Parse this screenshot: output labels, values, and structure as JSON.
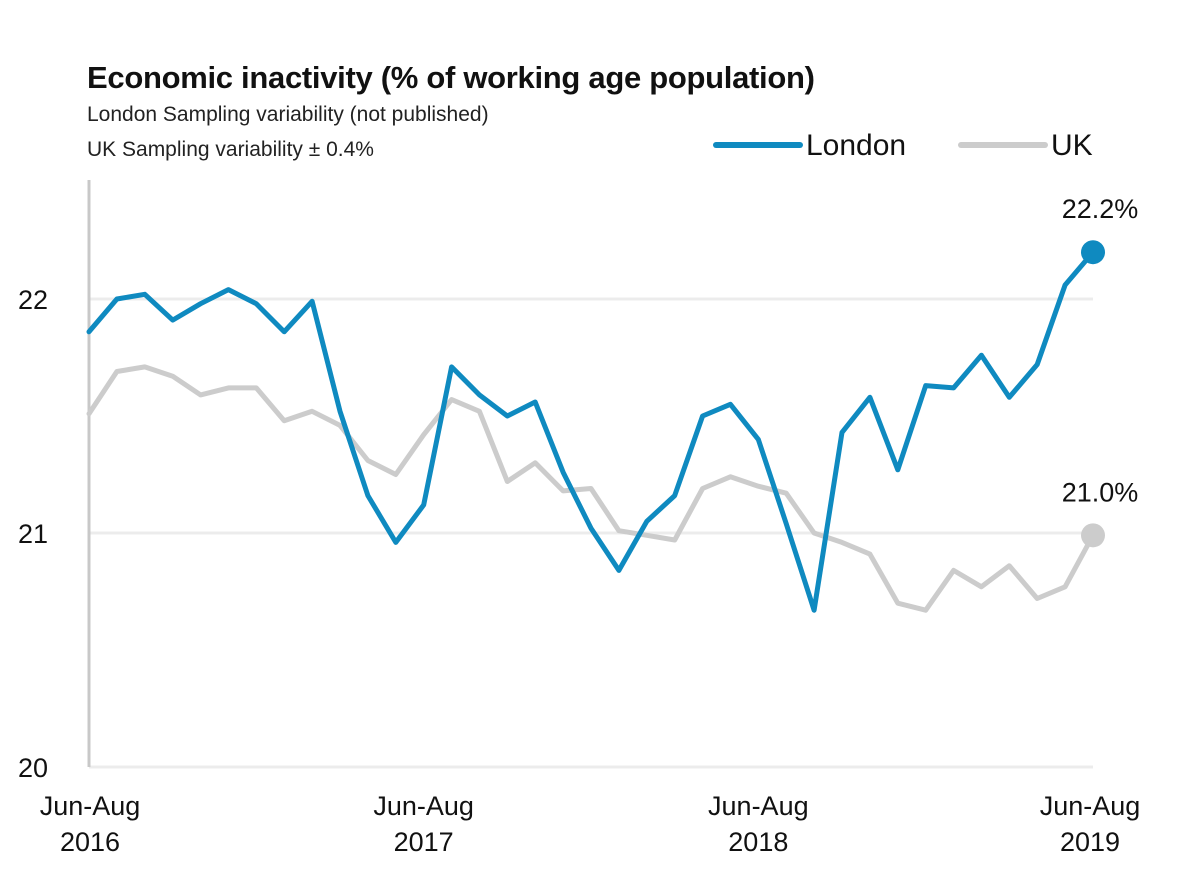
{
  "chart_data": {
    "type": "line",
    "title": "Economic inactivity (% of working age population)",
    "subtitle": [
      "London Sampling variability (not published)",
      "UK Sampling variability ± 0.4%"
    ],
    "x_tick_labels": [
      {
        "label": [
          "Jun-Aug",
          "2016"
        ],
        "index": 0
      },
      {
        "label": [
          "Jun-Aug",
          "2017"
        ],
        "index": 12
      },
      {
        "label": [
          "Jun-Aug",
          "2018"
        ],
        "index": 24
      },
      {
        "label": [
          "Jun-Aug",
          "2019"
        ],
        "index": 36
      }
    ],
    "ylim": [
      20,
      22.5
    ],
    "yticks": [
      20,
      21,
      22
    ],
    "grid": true,
    "legend": "top-right",
    "series": [
      {
        "name": "London",
        "color": "#0f8ac0",
        "end_label": "22.2%",
        "values": [
          21.86,
          22.0,
          22.02,
          21.91,
          21.98,
          22.04,
          21.98,
          21.86,
          21.99,
          21.52,
          21.16,
          20.96,
          21.12,
          21.71,
          21.59,
          21.5,
          21.56,
          21.26,
          21.02,
          20.84,
          21.05,
          21.16,
          21.5,
          21.55,
          21.4,
          21.04,
          20.67,
          21.43,
          21.58,
          21.27,
          21.63,
          21.62,
          21.76,
          21.58,
          21.72,
          22.06,
          22.2
        ]
      },
      {
        "name": "UK",
        "color": "#cccccc",
        "end_label": "21.0%",
        "values": [
          21.51,
          21.69,
          21.71,
          21.67,
          21.59,
          21.62,
          21.62,
          21.48,
          21.52,
          21.46,
          21.31,
          21.25,
          21.42,
          21.57,
          21.52,
          21.22,
          21.3,
          21.18,
          21.19,
          21.01,
          20.99,
          20.97,
          21.19,
          21.24,
          21.2,
          21.17,
          21.0,
          20.96,
          20.91,
          20.7,
          20.67,
          20.84,
          20.77,
          20.86,
          20.72,
          20.77,
          20.99
        ]
      }
    ]
  }
}
